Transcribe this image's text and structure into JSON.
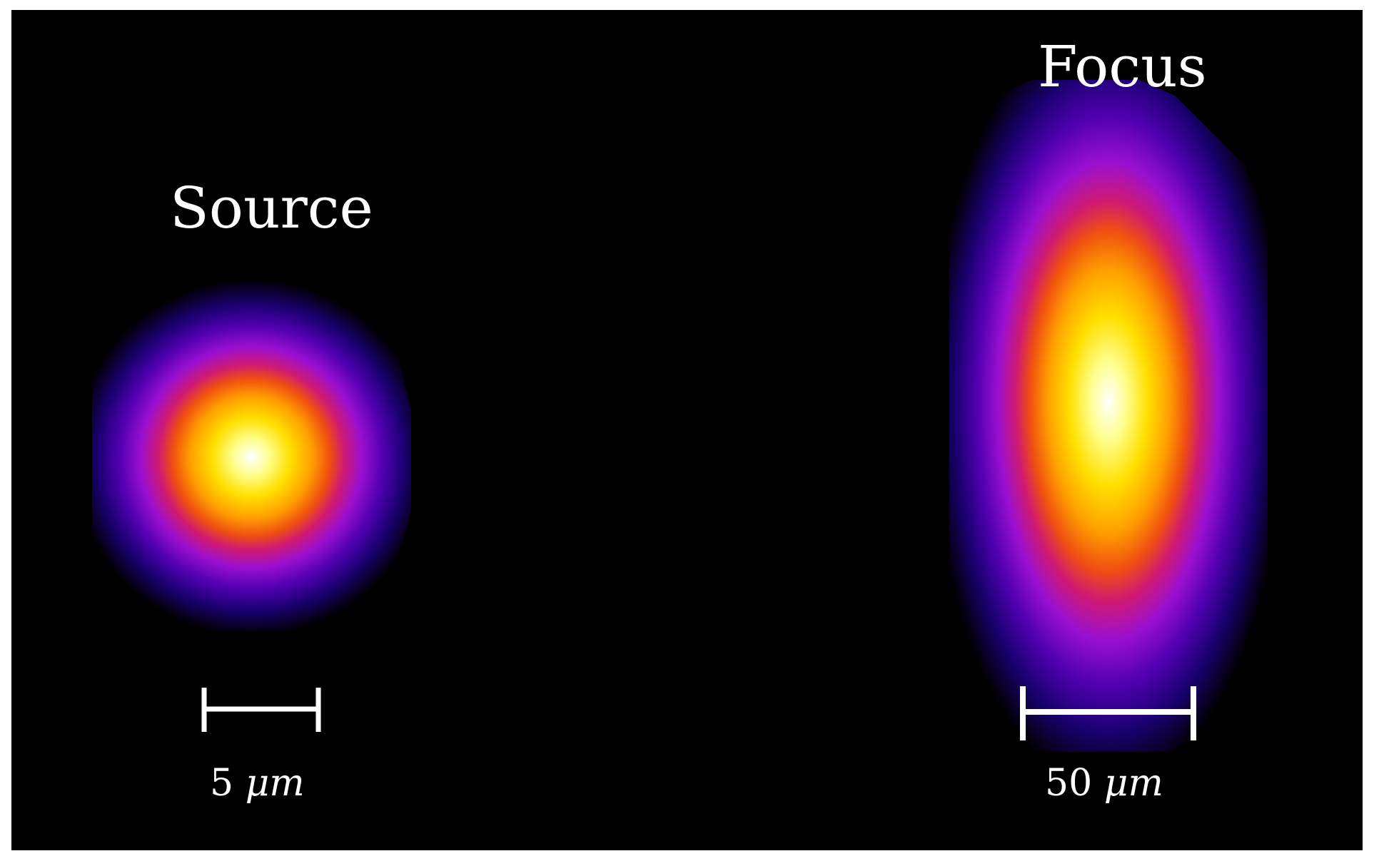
{
  "source": {
    "title": "Source",
    "scale_value": "5",
    "scale_unit": "μm"
  },
  "focus": {
    "title": "Focus",
    "scale_value": "50",
    "scale_unit": "μm"
  },
  "colors": {
    "background": "#000000",
    "frame_border": "#ffffff",
    "colormap": [
      "#000000",
      "#0a0050",
      "#3a00a0",
      "#8a10d8",
      "#d01a80",
      "#f04a10",
      "#ff9a00",
      "#ffe000",
      "#ffff80",
      "#ffffff"
    ]
  }
}
